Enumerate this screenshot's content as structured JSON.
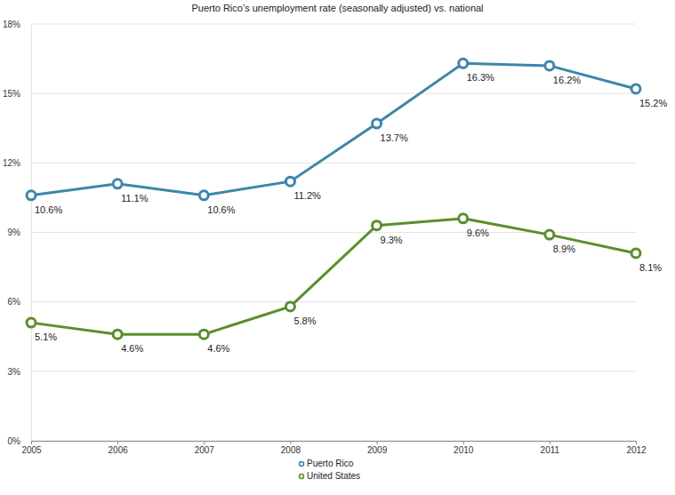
{
  "chart_data": {
    "type": "line",
    "title": "Puerto Rico’s unemployment rate (seasonally adjusted) vs. national",
    "x": [
      2005,
      2006,
      2007,
      2008,
      2009,
      2010,
      2011,
      2012
    ],
    "xlim": [
      2005,
      2012
    ],
    "xticks": [
      2005,
      2006,
      2007,
      2008,
      2009,
      2010,
      2011,
      2012
    ],
    "ylim": [
      0,
      18
    ],
    "yticks": [
      {
        "value": 0,
        "label": "0%"
      },
      {
        "value": 3,
        "label": "3%"
      },
      {
        "value": 6,
        "label": "6%"
      },
      {
        "value": 9,
        "label": "9%"
      },
      {
        "value": 12,
        "label": "12%"
      },
      {
        "value": 15,
        "label": "15%"
      },
      {
        "value": 18,
        "label": "18%"
      }
    ],
    "grid": true,
    "legend": "bottom",
    "data_labels": true,
    "marker": "circle",
    "line_style": "solid",
    "series": [
      {
        "name": "Puerto Rico",
        "color": "#3d86aa",
        "values": [
          10.6,
          11.1,
          10.6,
          11.2,
          13.7,
          16.3,
          16.2,
          15.2
        ],
        "value_labels": [
          "10.6%",
          "11.1%",
          "10.6%",
          "11.2%",
          "13.7%",
          "16.3%",
          "16.2%",
          "15.2%"
        ]
      },
      {
        "name": "United States",
        "color": "#5b8e2c",
        "values": [
          5.1,
          4.6,
          4.6,
          5.8,
          9.3,
          9.6,
          8.9,
          8.1
        ],
        "value_labels": [
          "5.1%",
          "4.6%",
          "4.6%",
          "5.8%",
          "9.3%",
          "9.6%",
          "8.9%",
          "8.1%"
        ]
      }
    ]
  }
}
